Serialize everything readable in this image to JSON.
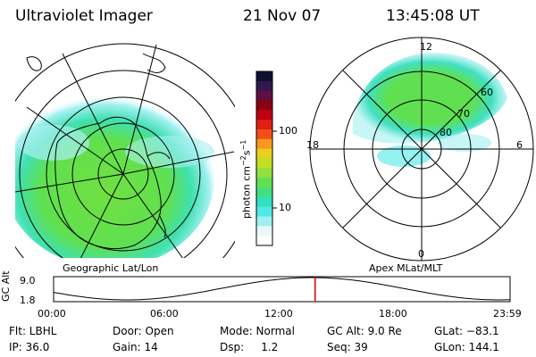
{
  "header": {
    "instrument": "Ultraviolet Imager",
    "date": "21 Nov 07",
    "time": "13:45:08 UT"
  },
  "colorbar": {
    "label": "photon cm-2s-1",
    "ticks": [
      "100",
      "10"
    ],
    "colors": [
      "#101030",
      "#301850",
      "#601040",
      "#8c0010",
      "#c00010",
      "#e02010",
      "#f05018",
      "#f89820",
      "#e8d020",
      "#c0e020",
      "#90e040",
      "#60e050",
      "#40e080",
      "#30e0c0",
      "#50e8e8",
      "#a0f0f0",
      "#e8f8f8",
      "#ffffff"
    ]
  },
  "left_panel": {
    "caption": "Geographic Lat/Lon"
  },
  "right_panel": {
    "caption": "Apex MLat/MLT",
    "mlt_labels": {
      "top": "12",
      "left": "18",
      "right": "6",
      "bottom": "0"
    },
    "lat_labels": [
      "60",
      "70",
      "80"
    ]
  },
  "timeline": {
    "axis_label": "GC Alt",
    "y_ticks": [
      "9.0",
      "1.8"
    ],
    "x_ticks": [
      "00:00",
      "06:00",
      "12:00",
      "18:00",
      "23:59"
    ],
    "marker_time_hours": 13.75
  },
  "info": {
    "row1": {
      "filter": "Flt: LBHL",
      "door": "Door: Open",
      "mode": "Mode: Normal",
      "gc_alt": "GC Alt: 9.0 Re",
      "glat": "GLat: −83.1"
    },
    "row2": {
      "ip": "IP: 36.0",
      "gain": "Gain: 14",
      "dsp": "Dsp:     1.2",
      "seq": "Seq: 39",
      "glon": "GLon: 144.1"
    }
  }
}
